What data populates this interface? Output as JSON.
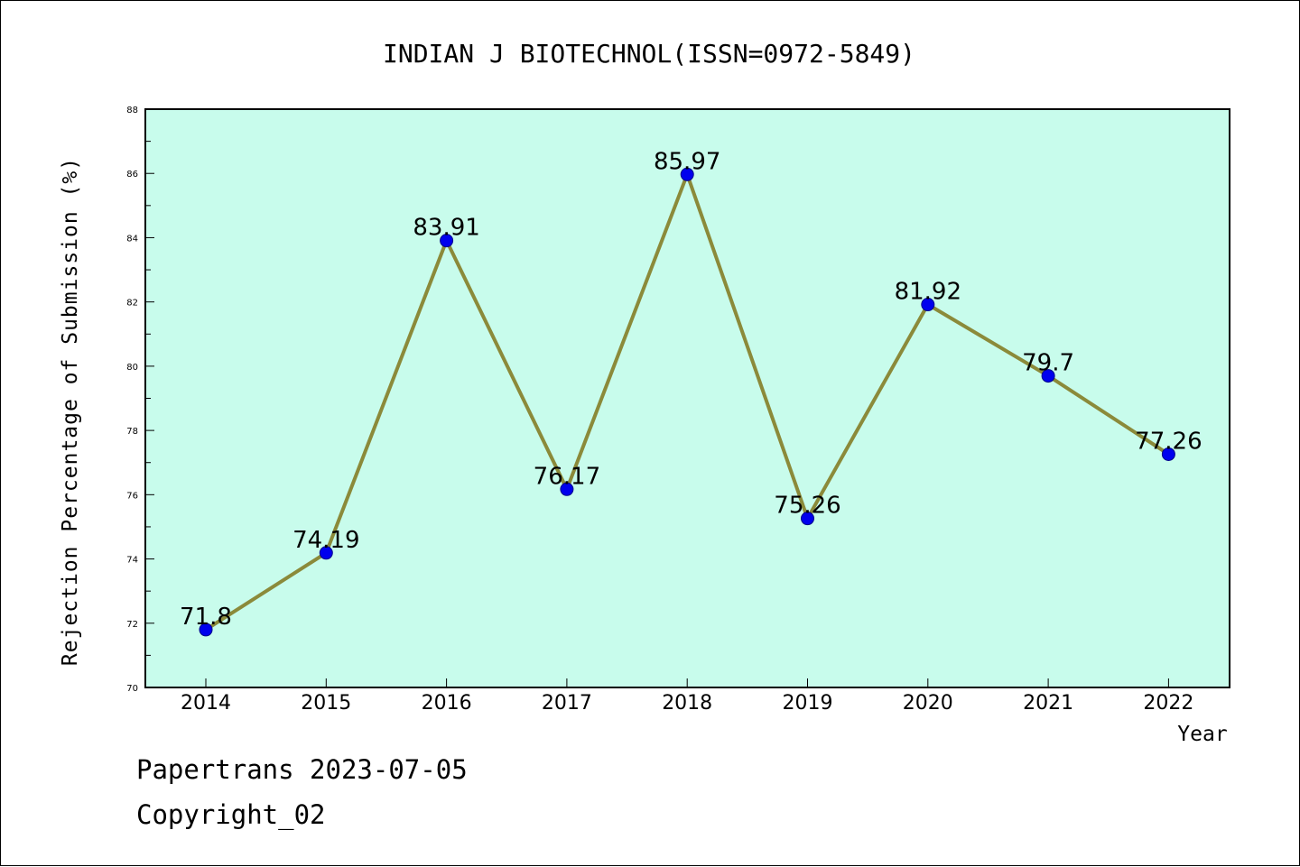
{
  "chart_data": {
    "type": "line",
    "title": "INDIAN J BIOTECHNOL(ISSN=0972-5849)",
    "xlabel": "Year",
    "ylabel": "Rejection Percentage of Submission (%)",
    "categories": [
      "2014",
      "2015",
      "2016",
      "2017",
      "2018",
      "2019",
      "2020",
      "2021",
      "2022"
    ],
    "values": [
      71.8,
      74.19,
      83.91,
      76.17,
      85.97,
      75.26,
      81.92,
      79.7,
      77.26
    ],
    "data_labels": [
      "71.8",
      "74.19",
      "83.91",
      "76.17",
      "85.97",
      "75.26",
      "81.92",
      "79.7",
      "77.26"
    ],
    "ylim": [
      70,
      88
    ],
    "yticks": [
      70,
      72,
      74,
      76,
      78,
      80,
      82,
      84,
      86,
      88
    ],
    "grid": false,
    "legend": "none",
    "colors": {
      "plot_background": "#c8fcec",
      "line": "#8b8a3a",
      "marker": "#0000ee",
      "marker_edge": "#00008b"
    }
  },
  "footer": {
    "line1": "Papertrans 2023-07-05",
    "line2": "Copyright_02"
  }
}
